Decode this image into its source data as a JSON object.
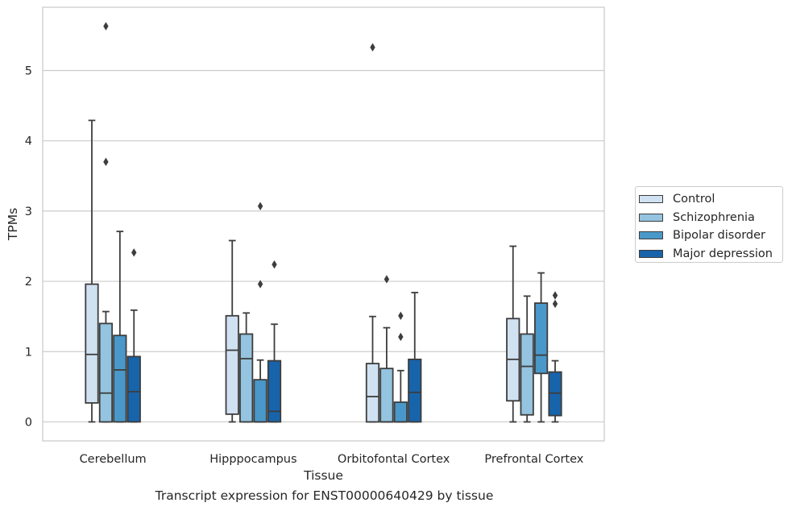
{
  "chart_data": {
    "type": "boxplot",
    "title": "",
    "caption": "Transcript expression for ENST00000640429 by tissue",
    "xlabel": "Tissue",
    "ylabel": "TPMs",
    "ylim": [
      -0.27,
      5.9
    ],
    "yticks": [
      0,
      1,
      2,
      3,
      4,
      5
    ],
    "grid": "horizontal",
    "legend_position": "right",
    "categories": [
      "Cerebellum",
      "Hipppocampus",
      "Orbitofontal Cortex",
      "Prefrontal Cortex"
    ],
    "series": [
      {
        "name": "Control",
        "color": "#d0e1f2",
        "boxes": [
          {
            "whislo": 0.0,
            "q1": 0.27,
            "med": 0.96,
            "q3": 1.96,
            "whishi": 4.29,
            "fliers": []
          },
          {
            "whislo": 0.0,
            "q1": 0.11,
            "med": 1.02,
            "q3": 1.51,
            "whishi": 2.58,
            "fliers": []
          },
          {
            "whislo": 0.0,
            "q1": 0.0,
            "med": 0.36,
            "q3": 0.83,
            "whishi": 1.5,
            "fliers": [
              5.33
            ]
          },
          {
            "whislo": 0.0,
            "q1": 0.3,
            "med": 0.89,
            "q3": 1.47,
            "whishi": 2.5,
            "fliers": []
          }
        ]
      },
      {
        "name": "Schizophrenia",
        "color": "#94c4df",
        "boxes": [
          {
            "whislo": 0.0,
            "q1": 0.0,
            "med": 0.41,
            "q3": 1.4,
            "whishi": 1.57,
            "fliers": [
              5.63,
              3.7
            ]
          },
          {
            "whislo": 0.0,
            "q1": 0.0,
            "med": 0.9,
            "q3": 1.25,
            "whishi": 1.55,
            "fliers": []
          },
          {
            "whislo": 0.0,
            "q1": 0.0,
            "med": 0.0,
            "q3": 0.76,
            "whishi": 1.34,
            "fliers": [
              2.03
            ]
          },
          {
            "whislo": 0.0,
            "q1": 0.1,
            "med": 0.79,
            "q3": 1.25,
            "whishi": 1.79,
            "fliers": []
          }
        ]
      },
      {
        "name": "Bipolar disorder",
        "color": "#4a98c9",
        "boxes": [
          {
            "whislo": 0.0,
            "q1": 0.0,
            "med": 0.74,
            "q3": 1.23,
            "whishi": 2.71,
            "fliers": []
          },
          {
            "whislo": 0.0,
            "q1": 0.0,
            "med": 0.0,
            "q3": 0.6,
            "whishi": 0.88,
            "fliers": [
              3.07,
              1.96
            ]
          },
          {
            "whislo": 0.0,
            "q1": 0.0,
            "med": 0.0,
            "q3": 0.28,
            "whishi": 0.73,
            "fliers": [
              1.51,
              1.21
            ]
          },
          {
            "whislo": 0.0,
            "q1": 0.69,
            "med": 0.95,
            "q3": 1.69,
            "whishi": 2.12,
            "fliers": []
          }
        ]
      },
      {
        "name": "Major depression",
        "color": "#1764ab",
        "boxes": [
          {
            "whislo": 0.0,
            "q1": 0.0,
            "med": 0.43,
            "q3": 0.93,
            "whishi": 1.59,
            "fliers": [
              2.41
            ]
          },
          {
            "whislo": 0.0,
            "q1": 0.0,
            "med": 0.15,
            "q3": 0.87,
            "whishi": 1.39,
            "fliers": [
              2.24
            ]
          },
          {
            "whislo": 0.0,
            "q1": 0.0,
            "med": 0.42,
            "q3": 0.89,
            "whishi": 1.84,
            "fliers": []
          },
          {
            "whislo": 0.0,
            "q1": 0.09,
            "med": 0.41,
            "q3": 0.71,
            "whishi": 0.87,
            "fliers": [
              1.8,
              1.68
            ]
          }
        ]
      }
    ]
  }
}
